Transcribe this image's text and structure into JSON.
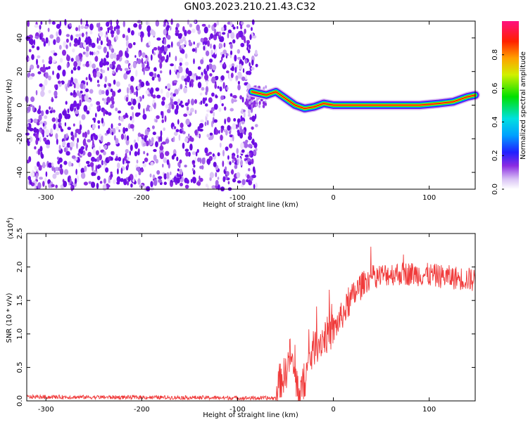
{
  "title": "GN03.2023.210.21.43.C32",
  "chart_data": [
    {
      "type": "heatmap",
      "xlabel": "Height of straight line (km)",
      "ylabel": "Frequency (Hz)",
      "xlim": [
        -320,
        148
      ],
      "ylim": [
        -50,
        50
      ],
      "xticks": [
        -300,
        -200,
        -100,
        0,
        100
      ],
      "yticks": [
        -40,
        -20,
        0,
        20,
        40
      ],
      "noise_region_x": [
        -320,
        -77
      ],
      "ridge": {
        "description_points": [
          [
            -85,
            8
          ],
          [
            -70,
            6
          ],
          [
            -60,
            8
          ],
          [
            -50,
            4
          ],
          [
            -40,
            0
          ],
          [
            -30,
            -2
          ],
          [
            -20,
            -1
          ],
          [
            -10,
            1
          ],
          [
            0,
            0
          ],
          [
            10,
            0
          ],
          [
            50,
            0
          ],
          [
            90,
            0
          ],
          [
            110,
            1
          ],
          [
            125,
            2
          ],
          [
            140,
            5
          ],
          [
            148,
            6
          ]
        ]
      },
      "colorbar": {
        "label": "Normalized spectral amplitude",
        "range": [
          0,
          1
        ],
        "ticks": [
          "0.0",
          "0.2",
          "0.4",
          "0.6",
          "0.8"
        ]
      }
    },
    {
      "type": "line",
      "xlabel": "Height of straight line (km)",
      "ylabel": "SNR (10 * v/v)",
      "multiplier": "(x10",
      "multiplier_exp": "4",
      "multiplier_close": ")",
      "xlim": [
        -320,
        148
      ],
      "ylim": [
        0,
        2.5
      ],
      "xticks": [
        -300,
        -200,
        -100,
        0,
        100
      ],
      "yticks": [
        "0.0",
        "0.5",
        "1.0",
        "1.5",
        "2.0",
        "2.5"
      ],
      "line_color": "#f03a3a",
      "trend_points": [
        [
          -320,
          0.06
        ],
        [
          -150,
          0.05
        ],
        [
          -60,
          0.04
        ],
        [
          -58,
          0.25
        ],
        [
          -50,
          0.4
        ],
        [
          -45,
          0.7
        ],
        [
          -40,
          0.35
        ],
        [
          -35,
          0.1
        ],
        [
          -30,
          0.3
        ],
        [
          -25,
          0.6
        ],
        [
          -20,
          0.8
        ],
        [
          -10,
          0.95
        ],
        [
          0,
          1.05
        ],
        [
          10,
          1.3
        ],
        [
          20,
          1.55
        ],
        [
          30,
          1.75
        ],
        [
          40,
          1.85
        ],
        [
          60,
          1.9
        ],
        [
          80,
          1.9
        ],
        [
          100,
          1.88
        ],
        [
          120,
          1.85
        ],
        [
          140,
          1.82
        ],
        [
          148,
          1.8
        ]
      ]
    }
  ]
}
